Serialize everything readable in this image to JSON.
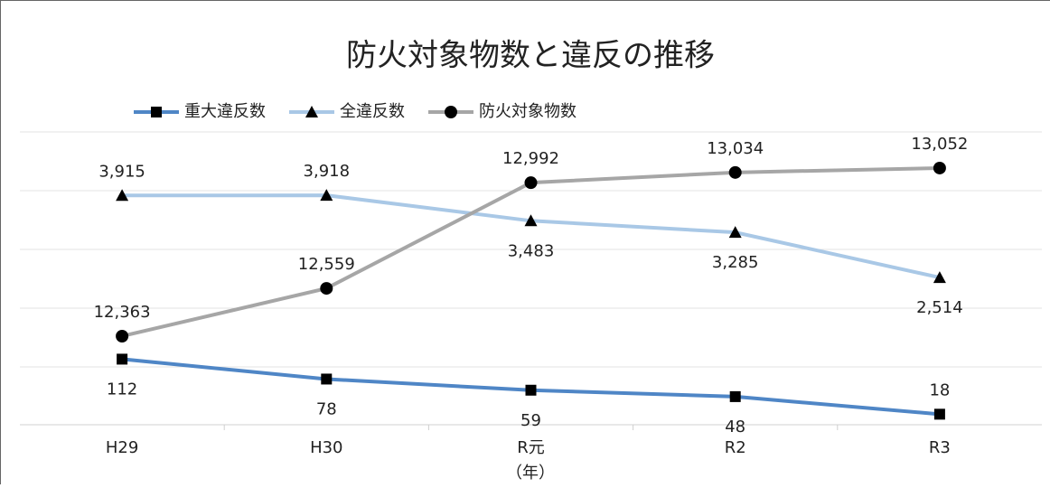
{
  "chart_data": {
    "type": "line",
    "title": "防火対象物数と違反の推移",
    "x_label": "（年）",
    "categories": [
      "H29",
      "H30",
      "R元",
      "R2",
      "R3"
    ],
    "series": [
      {
        "name": "重大違反数",
        "color": "#4f86c6",
        "marker": "square",
        "ylim": [
          0,
          500
        ],
        "values": [
          112,
          78,
          59,
          48,
          18
        ],
        "value_label_positions": [
          "below",
          "below",
          "below",
          "below",
          "above"
        ]
      },
      {
        "name": "全違反数",
        "color": "#a9c8e6",
        "marker": "triangle",
        "ylim": [
          0,
          5000
        ],
        "values": [
          3915,
          3918,
          3483,
          3285,
          2514
        ],
        "value_labels": [
          "3,915",
          "3,918",
          "3,483",
          "3,285",
          "2,514"
        ],
        "value_label_positions": [
          "above",
          "above",
          "below",
          "below",
          "below"
        ]
      },
      {
        "name": "防火対象物数",
        "color": "#a6a6a6",
        "marker": "circle",
        "ylim": [
          12000,
          13200
        ],
        "values": [
          12363,
          12559,
          12992,
          13034,
          13052
        ],
        "value_labels": [
          "12,363",
          "12,559",
          "12,992",
          "13,034",
          "13,052"
        ],
        "value_label_positions": [
          "above",
          "above",
          "above",
          "above",
          "above"
        ]
      }
    ]
  }
}
